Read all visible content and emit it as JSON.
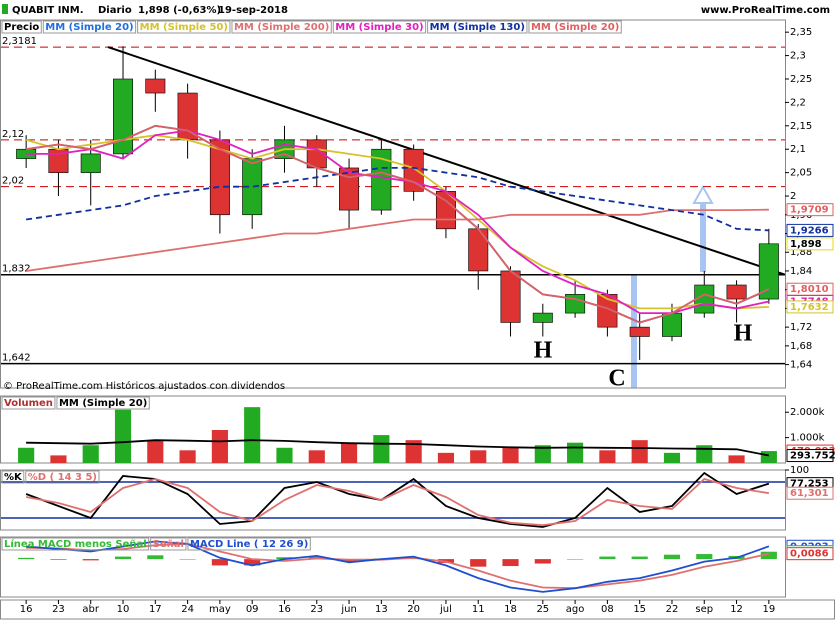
{
  "header": {
    "title": "QUABIT INM.",
    "period": "Diario",
    "quote": "1,898 (-0,63%)",
    "date": "19-sep-2018",
    "site": "www.ProRealTime.com"
  },
  "chart_data": [
    {
      "type": "candlestick",
      "categories": [
        "16",
        "23",
        "abr",
        "10",
        "17",
        "24",
        "may",
        "09",
        "16",
        "23",
        "jun",
        "13",
        "20",
        "jul",
        "11",
        "18",
        "25",
        "ago",
        "08",
        "15",
        "22",
        "sep",
        "12",
        "19"
      ],
      "ylim": [
        1.59,
        2.376
      ],
      "yticks": [
        {
          "value": 2.35,
          "label": "2,35"
        },
        {
          "value": 2.3,
          "label": "2,3"
        },
        {
          "value": 2.25,
          "label": "2,25"
        },
        {
          "value": 2.2,
          "label": "2,2"
        },
        {
          "value": 2.15,
          "label": "2,15"
        },
        {
          "value": 2.1,
          "label": "2,1"
        },
        {
          "value": 2.05,
          "label": "2,05"
        },
        {
          "value": 2,
          "label": "2"
        },
        {
          "value": 1.96,
          "label": "1,96"
        },
        {
          "value": 1.92,
          "label": "1,92"
        },
        {
          "value": 1.88,
          "label": "1,88"
        },
        {
          "value": 1.84,
          "label": "1,84"
        },
        {
          "value": 1.8,
          "label": "1,8"
        },
        {
          "value": 1.76,
          "label": "1,76"
        },
        {
          "value": 1.72,
          "label": "1,72"
        },
        {
          "value": 1.68,
          "label": "1,68"
        },
        {
          "value": 1.64,
          "label": "1,64"
        }
      ],
      "series": [
        {
          "name": "Precio",
          "type": "candlestick",
          "color": "#000000",
          "up_color": "#22aa22",
          "down_color": "#dd3333",
          "open": [
            2.08,
            2.1,
            2.05,
            2.09,
            2.25,
            2.22,
            2.12,
            1.96,
            2.08,
            2.12,
            2.06,
            1.97,
            2.1,
            2.01,
            1.93,
            1.84,
            1.73,
            1.75,
            1.79,
            1.72,
            1.7,
            1.75,
            1.81,
            1.78
          ],
          "high": [
            2.13,
            2.12,
            2.12,
            2.32,
            2.27,
            2.24,
            2.14,
            2.1,
            2.15,
            2.13,
            2.08,
            2.12,
            2.11,
            2.02,
            1.94,
            1.85,
            1.77,
            1.82,
            1.8,
            1.75,
            1.77,
            1.84,
            1.82,
            1.93
          ],
          "low": [
            2.06,
            2.0,
            1.98,
            2.08,
            2.18,
            2.08,
            1.92,
            1.93,
            2.05,
            2.02,
            1.93,
            1.96,
            1.99,
            1.91,
            1.8,
            1.7,
            1.7,
            1.74,
            1.7,
            1.65,
            1.69,
            1.74,
            1.73,
            1.77
          ],
          "close": [
            2.1,
            2.05,
            2.09,
            2.25,
            2.22,
            2.12,
            1.96,
            2.08,
            2.12,
            2.06,
            1.97,
            2.1,
            2.01,
            1.93,
            1.84,
            1.73,
            1.75,
            1.79,
            1.72,
            1.7,
            1.75,
            1.81,
            1.78,
            1.898
          ]
        },
        {
          "name": "MM (Simple 20)",
          "type": "line",
          "color": "#1f6fe0",
          "values": [
            2.1,
            2.11,
            2.1,
            2.12,
            2.15,
            2.14,
            2.1,
            2.07,
            2.09,
            2.06,
            2.04,
            2.05,
            2.03,
            1.99,
            1.93,
            1.84,
            1.79,
            1.78,
            1.76,
            1.73,
            1.75,
            1.79,
            1.77,
            1.8
          ]
        },
        {
          "name": "MM (Simple 50)",
          "type": "line",
          "color": "#d4c32a",
          "values": [
            2.12,
            2.1,
            2.11,
            2.12,
            2.13,
            2.12,
            2.1,
            2.08,
            2.1,
            2.1,
            2.09,
            2.08,
            2.06,
            2.01,
            1.95,
            1.89,
            1.85,
            1.82,
            1.78,
            1.76,
            1.76,
            1.77,
            1.76,
            1.7632
          ]
        },
        {
          "name": "MM (Simple 200)",
          "type": "line",
          "color": "#e07070",
          "values": [
            1.84,
            1.85,
            1.86,
            1.87,
            1.88,
            1.89,
            1.9,
            1.91,
            1.92,
            1.92,
            1.93,
            1.94,
            1.95,
            1.95,
            1.95,
            1.96,
            1.96,
            1.96,
            1.96,
            1.96,
            1.97,
            1.97,
            1.97,
            1.9709
          ]
        },
        {
          "name": "MM (Simple 30)",
          "type": "line",
          "color": "#e020c0",
          "values": [
            2.09,
            2.09,
            2.1,
            2.08,
            2.13,
            2.14,
            2.12,
            2.09,
            2.11,
            2.1,
            2.05,
            2.04,
            2.03,
            2.01,
            1.96,
            1.89,
            1.84,
            1.81,
            1.79,
            1.75,
            1.75,
            1.77,
            1.76,
            1.7748
          ]
        },
        {
          "name": "MM (Simple 130)",
          "type": "line",
          "dashed": true,
          "color": "#1030a0",
          "values": [
            1.95,
            1.96,
            1.97,
            1.98,
            2.0,
            2.01,
            2.02,
            2.02,
            2.03,
            2.04,
            2.05,
            2.06,
            2.06,
            2.05,
            2.04,
            2.02,
            2.01,
            2.0,
            1.99,
            1.98,
            1.97,
            1.96,
            1.93,
            1.9266
          ]
        },
        {
          "name": "MM (Simple 20)",
          "type": "line",
          "color": "#e06060",
          "values": [
            2.1,
            2.11,
            2.1,
            2.12,
            2.15,
            2.14,
            2.1,
            2.07,
            2.09,
            2.06,
            2.04,
            2.05,
            2.03,
            1.99,
            1.93,
            1.84,
            1.79,
            1.78,
            1.76,
            1.73,
            1.75,
            1.79,
            1.77,
            1.801
          ]
        }
      ],
      "levels": [
        {
          "value": 2.3181,
          "label": "2,3181",
          "color": "#cc0000",
          "dashed": true
        },
        {
          "value": 2.12,
          "label": "2,12",
          "color": "#cc0000",
          "dashed": true
        },
        {
          "value": 2.02,
          "label": "2,02",
          "color": "#cc0000",
          "dashed": true
        },
        {
          "value": 1.832,
          "label": "1,832",
          "color": "#000000"
        },
        {
          "value": 1.642,
          "label": "1,642",
          "color": "#000000"
        }
      ],
      "trendline": [
        2.3181,
        1.832
      ],
      "last_values": [
        {
          "value": 1.9709,
          "label": "1,9709",
          "color": "#e06060"
        },
        {
          "value": 1.9266,
          "label": "1,9266",
          "color": "#1030a0"
        },
        {
          "value": 1.898,
          "label": "1,898",
          "color": "#f0dc00"
        },
        {
          "value": 1.801,
          "label": "1,8010",
          "color": "#e06060"
        },
        {
          "value": 1.7748,
          "label": "1,7748",
          "color": "#e020c0"
        },
        {
          "value": 1.7632,
          "label": "1,7632",
          "color": "#d4c32a"
        }
      ],
      "annotations": [
        "H",
        "C",
        "H"
      ],
      "note": "© ProRealTime.com Históricos ajustados con dividendos"
    },
    {
      "type": "volume",
      "ylim": [
        0,
        2640000
      ],
      "yticks": [
        {
          "value": 2000000,
          "label": "2.000k"
        },
        {
          "value": 1000000,
          "label": "1.000k"
        }
      ],
      "series": [
        {
          "name": "Volumen",
          "type": "bar",
          "color": "#b03030",
          "values": [
            600000,
            300000,
            700000,
            2100000,
            900000,
            500000,
            1300000,
            2200000,
            600000,
            500000,
            800000,
            1100000,
            900000,
            400000,
            500000,
            600000,
            700000,
            800000,
            500000,
            900000,
            400000,
            700000,
            300000,
            470093
          ]
        },
        {
          "name": "MM (Simple 20)",
          "type": "line",
          "color": "#000000",
          "values": [
            800000,
            780000,
            760000,
            820000,
            900000,
            880000,
            850000,
            900000,
            870000,
            820000,
            780000,
            760000,
            750000,
            700000,
            650000,
            620000,
            600000,
            610000,
            600000,
            590000,
            570000,
            560000,
            540000,
            293752
          ]
        }
      ],
      "last_values": [
        {
          "value": 470093,
          "label": "470.093",
          "color": "#dd3333"
        },
        {
          "value": 293752,
          "label": "293.752",
          "color": "#000000"
        }
      ]
    },
    {
      "type": "stochastic",
      "ylim": [
        0,
        100
      ],
      "yticks": [
        100
      ],
      "series": [
        {
          "name": "%K",
          "type": "line",
          "color": "#000000",
          "values": [
            60,
            40,
            20,
            90,
            85,
            60,
            10,
            15,
            70,
            80,
            60,
            50,
            85,
            40,
            20,
            10,
            5,
            20,
            70,
            30,
            40,
            95,
            60,
            77.253
          ]
        },
        {
          "name": "%D ( 14 3 5)",
          "type": "line",
          "color": "#e07070",
          "values": [
            55,
            45,
            30,
            70,
            85,
            70,
            30,
            15,
            50,
            75,
            65,
            50,
            75,
            55,
            25,
            12,
            8,
            15,
            50,
            40,
            35,
            85,
            70,
            61.301
          ]
        }
      ],
      "levels": [
        {
          "value": 80,
          "color": "#1030a0"
        },
        {
          "value": 20,
          "color": "#1030a0"
        }
      ],
      "last_values": [
        {
          "value": 77.253,
          "label": "77,253",
          "color": "#000000"
        },
        {
          "value": 61.301,
          "label": "61,301",
          "color": "#e07070"
        }
      ]
    },
    {
      "type": "macd",
      "ylim": [
        -0.06,
        0.035
      ],
      "series": [
        {
          "name": "Línea MACD menos Señal",
          "type": "bar",
          "color": "#33bb33",
          "values": [
            0.002,
            -0.001,
            -0.002,
            0.004,
            0.006,
            0.0,
            -0.01,
            -0.01,
            0.003,
            0.004,
            -0.004,
            0.001,
            0.002,
            -0.006,
            -0.012,
            -0.011,
            -0.007,
            0.0,
            0.004,
            0.004,
            0.007,
            0.008,
            0.005,
            0.0117
          ]
        },
        {
          "name": "Señal",
          "type": "line",
          "color": "#e07070",
          "values": [
            0.018,
            0.017,
            0.014,
            0.016,
            0.022,
            0.024,
            0.012,
            0.0,
            -0.003,
            0.001,
            -0.001,
            -0.001,
            0.002,
            -0.004,
            -0.018,
            -0.034,
            -0.045,
            -0.046,
            -0.04,
            -0.034,
            -0.025,
            -0.012,
            -0.003,
            0.0086
          ]
        },
        {
          "name": "MACD Line ( 12 26 9)",
          "type": "line",
          "color": "#1f4fd0",
          "values": [
            0.02,
            0.016,
            0.012,
            0.02,
            0.028,
            0.024,
            0.002,
            -0.01,
            0.0,
            0.005,
            -0.005,
            0.0,
            0.004,
            -0.01,
            -0.03,
            -0.045,
            -0.052,
            -0.046,
            -0.036,
            -0.03,
            -0.018,
            -0.004,
            0.002,
            0.0203
          ]
        }
      ],
      "last_values": [
        {
          "value": 0.0203,
          "label": "0,0203",
          "color": "#1f4fd0"
        },
        {
          "value": 0.0117,
          "label": "0,0117",
          "color": "#33bb33"
        },
        {
          "value": 0.0086,
          "label": "0,0086",
          "color": "#dd3333"
        }
      ]
    }
  ]
}
